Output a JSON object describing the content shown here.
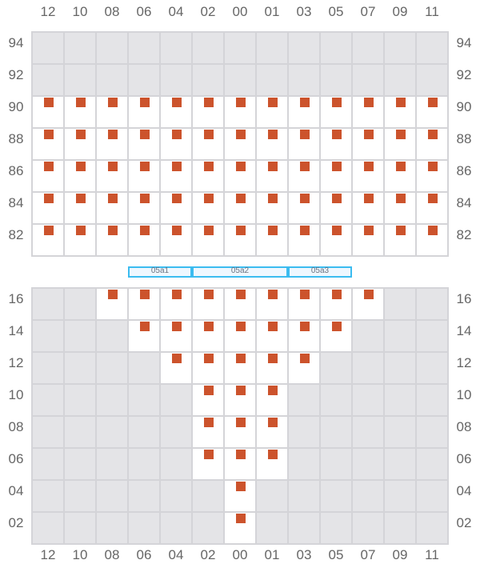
{
  "columns": [
    "12",
    "10",
    "08",
    "06",
    "04",
    "02",
    "00",
    "01",
    "03",
    "05",
    "07",
    "09",
    "11"
  ],
  "colors": {
    "occupied": "#cc532c",
    "unavailable": "#e4e4e7",
    "available": "#ffffff",
    "segment_border": "#3bbcf0"
  },
  "top_section": {
    "rows": [
      {
        "label": "94",
        "available": "0000000000000",
        "occupied": "0000000000000"
      },
      {
        "label": "92",
        "available": "0000000000000",
        "occupied": "0000000000000"
      },
      {
        "label": "90",
        "available": "1111111111111",
        "occupied": "1111111111111"
      },
      {
        "label": "88",
        "available": "1111111111111",
        "occupied": "1111111111111"
      },
      {
        "label": "86",
        "available": "1111111111111",
        "occupied": "1111111111111"
      },
      {
        "label": "84",
        "available": "1111111111111",
        "occupied": "1111111111111"
      },
      {
        "label": "82",
        "available": "1111111111111",
        "occupied": "1111111111111"
      }
    ]
  },
  "segments": [
    {
      "label": "05a1",
      "from_col": "06",
      "to_col": "04"
    },
    {
      "label": "05a2",
      "from_col": "02",
      "to_col": "01"
    },
    {
      "label": "05a3",
      "from_col": "03",
      "to_col": "05"
    }
  ],
  "bottom_section": {
    "rows": [
      {
        "label": "16",
        "available": "0011111111100",
        "occupied": "0011111111100"
      },
      {
        "label": "14",
        "available": "0001111111000",
        "occupied": "0001111111000"
      },
      {
        "label": "12",
        "available": "0000111110000",
        "occupied": "0000111110000"
      },
      {
        "label": "10",
        "available": "0000011100000",
        "occupied": "0000011100000"
      },
      {
        "label": "08",
        "available": "0000011100000",
        "occupied": "0000011100000"
      },
      {
        "label": "06",
        "available": "0000011100000",
        "occupied": "0000011100000"
      },
      {
        "label": "04",
        "available": "0000001000000",
        "occupied": "0000001000000"
      },
      {
        "label": "02",
        "available": "0000001000000",
        "occupied": "0000001000000"
      }
    ]
  }
}
